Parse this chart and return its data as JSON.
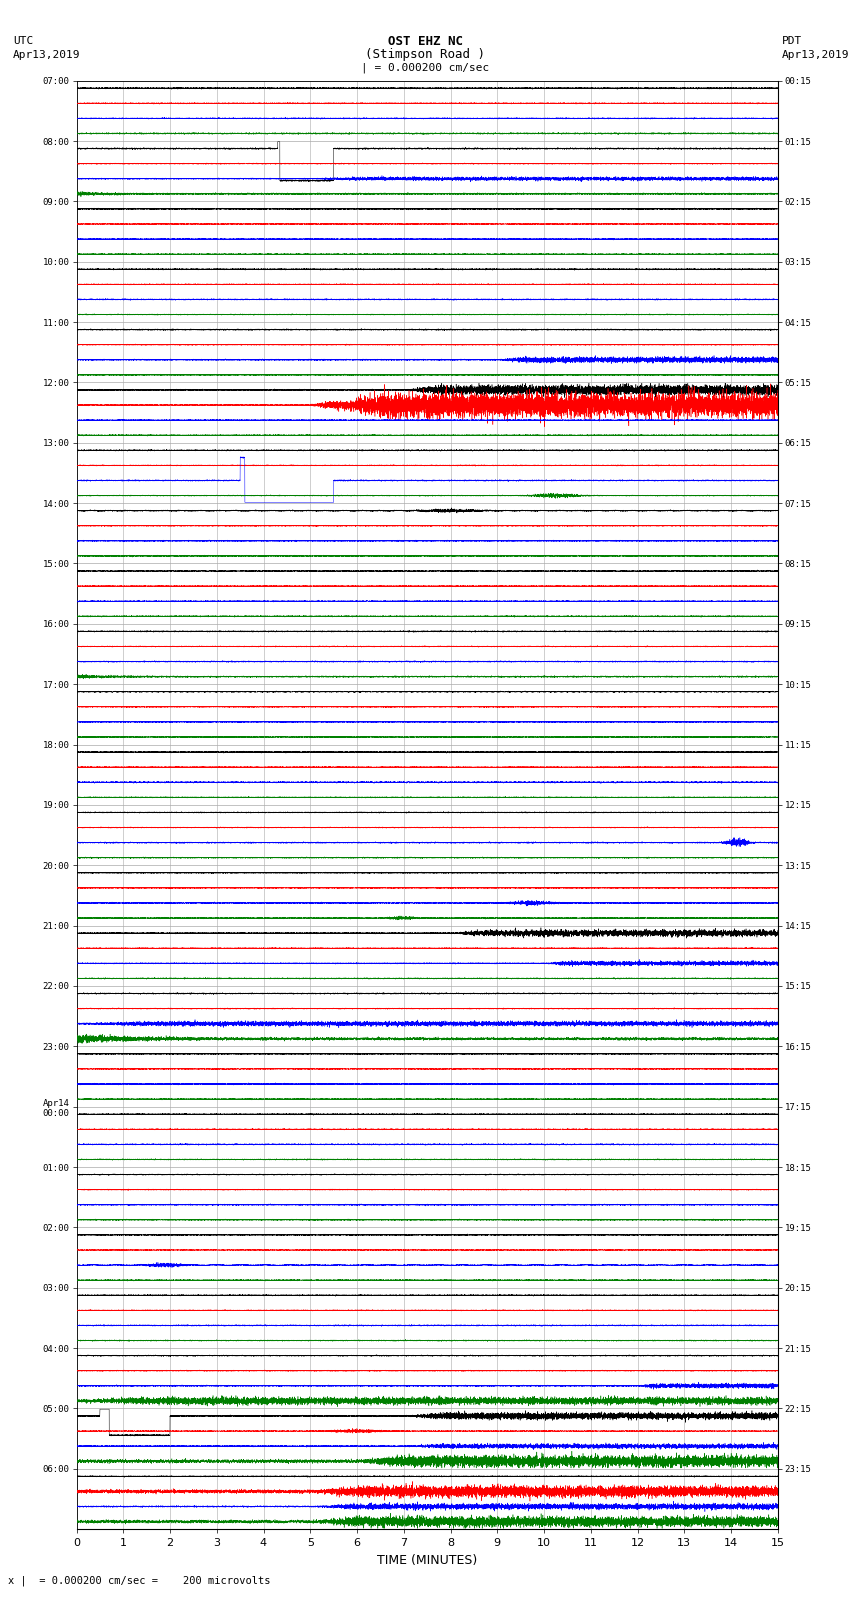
{
  "title_line1": "OST EHZ NC",
  "title_line2": "(Stimpson Road )",
  "title_line3": "| = 0.000200 cm/sec",
  "left_header_line1": "UTC",
  "left_header_line2": "Apr13,2019",
  "right_header_line1": "PDT",
  "right_header_line2": "Apr13,2019",
  "xlabel": "TIME (MINUTES)",
  "bottom_note": "x |  = 0.000200 cm/sec =    200 microvolts",
  "x_min": 0,
  "x_max": 15,
  "x_ticks": [
    0,
    1,
    2,
    3,
    4,
    5,
    6,
    7,
    8,
    9,
    10,
    11,
    12,
    13,
    14,
    15
  ],
  "background_color": "#ffffff",
  "grid_color": "#aaaaaa",
  "num_rows": 24,
  "utc_labels": [
    "07:00",
    "08:00",
    "09:00",
    "10:00",
    "11:00",
    "12:00",
    "13:00",
    "14:00",
    "15:00",
    "16:00",
    "17:00",
    "18:00",
    "19:00",
    "20:00",
    "21:00",
    "22:00",
    "23:00",
    "Apr14\n00:00",
    "01:00",
    "02:00",
    "03:00",
    "04:00",
    "05:00",
    "06:00"
  ],
  "pdt_labels": [
    "00:15",
    "01:15",
    "02:15",
    "03:15",
    "04:15",
    "05:15",
    "06:15",
    "07:15",
    "08:15",
    "09:15",
    "10:15",
    "11:15",
    "12:15",
    "13:15",
    "14:15",
    "15:15",
    "16:15",
    "17:15",
    "18:15",
    "19:15",
    "20:15",
    "21:15",
    "22:15",
    "23:15"
  ],
  "fig_width": 8.5,
  "fig_height": 16.13
}
